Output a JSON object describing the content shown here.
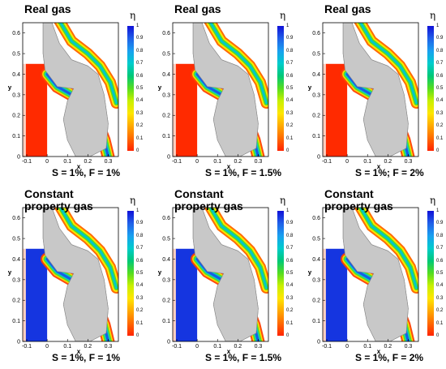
{
  "chart_data": [
    {
      "type": "heatmap",
      "title": "Real gas",
      "caption": "S = 1%, F = 1%",
      "xlabel": "x",
      "ylabel": "y",
      "xlim": [
        -0.12,
        0.35
      ],
      "ylim": [
        0,
        0.65
      ],
      "x_ticks": [
        "-0.1",
        "0",
        "0.1",
        "0.2",
        "0.3"
      ],
      "y_ticks": [
        "0",
        "0.1",
        "0.2",
        "0.3",
        "0.4",
        "0.5",
        "0.6"
      ],
      "colorbar": {
        "label": "η",
        "ticks": [
          "1",
          "0.9",
          "0.8",
          "0.7",
          "0.6",
          "0.5",
          "0.4",
          "0.3",
          "0.2",
          "0.1",
          "0"
        ],
        "range": [
          0,
          1
        ]
      }
    },
    {
      "type": "heatmap",
      "title": "Real gas",
      "caption": "S = 1%,  F = 1.5%",
      "xlabel": "x",
      "ylabel": "y",
      "xlim": [
        -0.12,
        0.35
      ],
      "ylim": [
        0,
        0.65
      ],
      "x_ticks": [
        "-0.1",
        "0",
        "0.1",
        "0.2",
        "0.3"
      ],
      "y_ticks": [
        "0",
        "0.1",
        "0.2",
        "0.3",
        "0.4",
        "0.5",
        "0.6"
      ],
      "colorbar": {
        "label": "η",
        "ticks": [
          "1",
          "0.9",
          "0.8",
          "0.7",
          "0.6",
          "0.5",
          "0.4",
          "0.3",
          "0.2",
          "0.1",
          "0"
        ],
        "range": [
          0,
          1
        ]
      }
    },
    {
      "type": "heatmap",
      "title": "Real gas",
      "caption": "S = 1%; F = 2%",
      "xlabel": "x",
      "ylabel": "y",
      "xlim": [
        -0.12,
        0.35
      ],
      "ylim": [
        0,
        0.65
      ],
      "x_ticks": [
        "-0.1",
        "0",
        "0.1",
        "0.2",
        "0.3"
      ],
      "y_ticks": [
        "0",
        "0.1",
        "0.2",
        "0.3",
        "0.4",
        "0.5",
        "0.6"
      ],
      "colorbar": {
        "label": "η",
        "ticks": [
          "1",
          "0.9",
          "0.8",
          "0.7",
          "0.6",
          "0.5",
          "0.4",
          "0.3",
          "0.2",
          "0.1",
          "0"
        ],
        "range": [
          0,
          1
        ]
      }
    },
    {
      "type": "heatmap",
      "title": "Constant\nproperty gas",
      "caption": "S = 1%, F = 1%",
      "xlabel": "x",
      "ylabel": "y",
      "xlim": [
        -0.12,
        0.35
      ],
      "ylim": [
        0,
        0.65
      ],
      "x_ticks": [
        "-0.1",
        "0",
        "0.1",
        "0.2",
        "0.3"
      ],
      "y_ticks": [
        "0",
        "0.1",
        "0.2",
        "0.3",
        "0.4",
        "0.5",
        "0.6"
      ],
      "colorbar": {
        "label": "η",
        "ticks": [
          "1",
          "0.9",
          "0.8",
          "0.7",
          "0.6",
          "0.5",
          "0.4",
          "0.3",
          "0.2",
          "0.1",
          "0"
        ],
        "range": [
          0,
          1
        ]
      }
    },
    {
      "type": "heatmap",
      "title": "Constant\nproperty gas",
      "caption": "S = 1%, F = 1.5%",
      "xlabel": "x",
      "ylabel": "y",
      "xlim": [
        -0.12,
        0.35
      ],
      "ylim": [
        0,
        0.65
      ],
      "x_ticks": [
        "-0.1",
        "0",
        "0.1",
        "0.2",
        "0.3"
      ],
      "y_ticks": [
        "0",
        "0.1",
        "0.2",
        "0.3",
        "0.4",
        "0.5",
        "0.6"
      ],
      "colorbar": {
        "label": "η",
        "ticks": [
          "1",
          "0.9",
          "0.8",
          "0.7",
          "0.6",
          "0.5",
          "0.4",
          "0.3",
          "0.2",
          "0.1",
          "0"
        ],
        "range": [
          0,
          1
        ]
      }
    },
    {
      "type": "heatmap",
      "title": "Constant\nproperty gas",
      "caption": "S = 1%, F = 2%",
      "xlabel": "x",
      "ylabel": "y",
      "xlim": [
        -0.12,
        0.35
      ],
      "ylim": [
        0,
        0.65
      ],
      "x_ticks": [
        "-0.1",
        "0",
        "0.1",
        "0.2",
        "0.3"
      ],
      "y_ticks": [
        "0",
        "0.1",
        "0.2",
        "0.3",
        "0.4",
        "0.5",
        "0.6"
      ],
      "colorbar": {
        "label": "η",
        "ticks": [
          "1",
          "0.9",
          "0.8",
          "0.7",
          "0.6",
          "0.5",
          "0.4",
          "0.3",
          "0.2",
          "0.1",
          "0"
        ],
        "range": [
          0,
          1
        ]
      }
    }
  ],
  "colors": {
    "blade": "#c8c8c8",
    "low": "#ff2a00",
    "high": "#1010e0"
  }
}
